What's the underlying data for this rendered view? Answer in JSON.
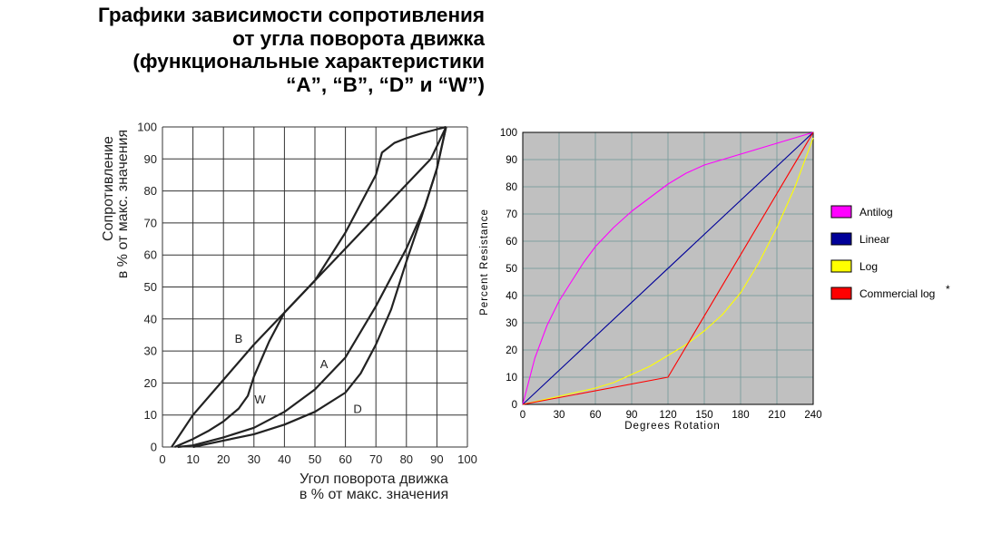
{
  "title": {
    "lines": [
      "Графики зависимости сопротивления",
      "от угла поворота движка",
      "(функциональные характеристики",
      "“A”, “B”, “D” и “W”)"
    ]
  },
  "chart_data": [
    {
      "type": "line",
      "ylabel_lines": [
        "Сопротивление",
        "в % от макс. значения"
      ],
      "xlabel_lines": [
        "Угол поворота движка",
        "в % от макс. значения"
      ],
      "xlim": [
        0,
        100
      ],
      "ylim": [
        0,
        100
      ],
      "x_ticks": [
        0,
        10,
        20,
        30,
        40,
        50,
        60,
        70,
        80,
        90,
        100
      ],
      "y_ticks": [
        0,
        10,
        20,
        30,
        40,
        50,
        60,
        70,
        80,
        90,
        100
      ],
      "grid": true,
      "series": [
        {
          "name": "B",
          "label_at": [
            25,
            34
          ],
          "points": [
            [
              3,
              0
            ],
            [
              10,
              10
            ],
            [
              20,
              21
            ],
            [
              30,
              32
            ],
            [
              40,
              42
            ],
            [
              50,
              52
            ],
            [
              60,
              62
            ],
            [
              70,
              72
            ],
            [
              80,
              82
            ],
            [
              88,
              90
            ],
            [
              93,
              100
            ]
          ]
        },
        {
          "name": "W",
          "label_at": [
            32,
            15
          ],
          "points": [
            [
              4,
              0
            ],
            [
              10,
              2.5
            ],
            [
              15,
              5
            ],
            [
              20,
              8
            ],
            [
              25,
              12
            ],
            [
              28,
              16
            ],
            [
              30,
              22
            ],
            [
              35,
              33
            ],
            [
              40,
              42
            ],
            [
              50,
              52
            ],
            [
              60,
              67
            ],
            [
              70,
              85
            ],
            [
              72,
              92
            ],
            [
              76,
              95
            ],
            [
              80,
              96.5
            ],
            [
              85,
              98
            ],
            [
              89,
              99
            ],
            [
              93,
              100
            ]
          ]
        },
        {
          "name": "A",
          "label_at": [
            53,
            26
          ],
          "points": [
            [
              5,
              0
            ],
            [
              10,
              0.5
            ],
            [
              20,
              3
            ],
            [
              30,
              6
            ],
            [
              40,
              11
            ],
            [
              50,
              18
            ],
            [
              60,
              28
            ],
            [
              70,
              44
            ],
            [
              80,
              62
            ],
            [
              86,
              75
            ],
            [
              90,
              87
            ],
            [
              93,
              100
            ]
          ]
        },
        {
          "name": "D",
          "label_at": [
            64,
            12
          ],
          "points": [
            [
              10,
              0
            ],
            [
              20,
              2
            ],
            [
              30,
              4
            ],
            [
              40,
              7
            ],
            [
              50,
              11
            ],
            [
              60,
              17
            ],
            [
              65,
              23
            ],
            [
              70,
              32
            ],
            [
              75,
              43
            ],
            [
              80,
              58
            ],
            [
              85,
              72
            ],
            [
              90,
              87
            ],
            [
              93,
              100
            ]
          ]
        }
      ]
    },
    {
      "type": "line",
      "ylabel": "Percent Resistance",
      "xlabel": "Degrees Rotation",
      "xlim": [
        0,
        240
      ],
      "ylim": [
        0,
        100
      ],
      "x_ticks": [
        0,
        30,
        60,
        90,
        120,
        150,
        180,
        210,
        240
      ],
      "y_ticks": [
        0,
        10,
        20,
        30,
        40,
        50,
        60,
        70,
        80,
        90,
        100
      ],
      "grid": true,
      "legend_position": "right",
      "legend_marker": "*",
      "series": [
        {
          "name": "Antilog",
          "color": "#ff00ff",
          "points": [
            [
              0,
              0
            ],
            [
              10,
              17
            ],
            [
              20,
              29
            ],
            [
              30,
              38
            ],
            [
              40,
              45
            ],
            [
              50,
              52
            ],
            [
              60,
              58
            ],
            [
              75,
              65
            ],
            [
              90,
              71
            ],
            [
              105,
              76
            ],
            [
              120,
              81
            ],
            [
              135,
              85
            ],
            [
              150,
              88
            ],
            [
              165,
              90
            ],
            [
              180,
              92
            ],
            [
              195,
              94
            ],
            [
              210,
              96
            ],
            [
              225,
              98
            ],
            [
              240,
              100
            ]
          ]
        },
        {
          "name": "Linear",
          "color": "#000099",
          "points": [
            [
              0,
              0
            ],
            [
              240,
              100
            ]
          ]
        },
        {
          "name": "Log",
          "color": "#ffff00",
          "points": [
            [
              0,
              0
            ],
            [
              15,
              1.5
            ],
            [
              30,
              3
            ],
            [
              45,
              4.5
            ],
            [
              60,
              6
            ],
            [
              75,
              8
            ],
            [
              90,
              11
            ],
            [
              105,
              14
            ],
            [
              120,
              18
            ],
            [
              135,
              22
            ],
            [
              150,
              27
            ],
            [
              165,
              33
            ],
            [
              180,
              41
            ],
            [
              195,
              52
            ],
            [
              210,
              65
            ],
            [
              225,
              80
            ],
            [
              240,
              98
            ]
          ]
        },
        {
          "name": "Commercial log",
          "color": "#ff0000",
          "points": [
            [
              0,
              0
            ],
            [
              120,
              10
            ],
            [
              240,
              100
            ]
          ]
        }
      ]
    }
  ]
}
